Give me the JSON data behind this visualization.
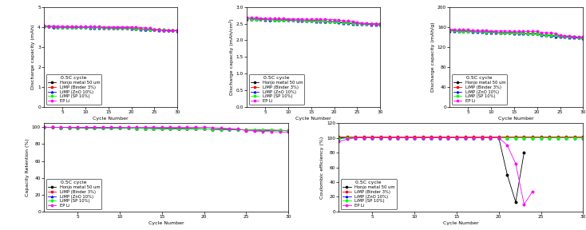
{
  "cycles": [
    1,
    2,
    3,
    4,
    5,
    6,
    7,
    8,
    9,
    10,
    11,
    12,
    13,
    14,
    15,
    16,
    17,
    18,
    19,
    20,
    21,
    22,
    23,
    24,
    25,
    26,
    27,
    28,
    29,
    30
  ],
  "series_labels": [
    "Honjo metal 50 um",
    "LiMP (Binder 3%)",
    "LiMP (ZnO 10%)",
    "LiMP (SP 10%)",
    "EP Li"
  ],
  "series_colors": [
    "black",
    "red",
    "blue",
    "lime",
    "magenta"
  ],
  "series_markers": [
    "o",
    "s",
    "^",
    "D",
    "o"
  ],
  "series_linestyles": [
    "-",
    "-",
    "-",
    "-",
    "-"
  ],
  "legend_title": "0.5C cycle",
  "plot1_ylabel": "Discharge capacity (mAh)",
  "plot2_ylabel": "Discharge capacity (mAh/cm²)",
  "plot3_ylabel": "Discharge capacity (mAh/g)",
  "plot4_ylabel": "Capacity Retention (%)",
  "plot5_ylabel": "Coulombic efficiency (%)",
  "xlabel": "Cycle Number",
  "plot1_ylim": [
    0,
    5
  ],
  "plot2_ylim": [
    0.0,
    3.0
  ],
  "plot3_ylim": [
    0,
    200
  ],
  "plot4_ylim": [
    0,
    105
  ],
  "plot5_ylim": [
    0,
    120
  ],
  "discharge_capacity_mAh": {
    "Honjo metal 50 um": [
      4.02,
      4.01,
      4.0,
      4.0,
      3.99,
      3.99,
      3.99,
      3.98,
      3.98,
      3.98,
      3.97,
      3.97,
      3.97,
      3.96,
      3.96,
      3.96,
      3.95,
      3.95,
      3.95,
      3.94,
      3.9,
      3.89,
      3.88,
      3.87,
      3.86,
      3.85,
      3.84,
      3.83,
      3.82,
      3.81
    ],
    "LiMP (Binder 3%)": [
      4.02,
      4.01,
      4.01,
      4.0,
      4.0,
      3.99,
      3.99,
      3.99,
      3.98,
      3.98,
      3.98,
      3.97,
      3.97,
      3.96,
      3.96,
      3.96,
      3.95,
      3.95,
      3.95,
      3.94,
      3.91,
      3.9,
      3.89,
      3.88,
      3.87,
      3.86,
      3.85,
      3.84,
      3.83,
      3.82
    ],
    "LiMP (ZnO 10%)": [
      4.01,
      4.01,
      4.0,
      4.0,
      3.99,
      3.99,
      3.98,
      3.98,
      3.97,
      3.97,
      3.96,
      3.96,
      3.96,
      3.95,
      3.95,
      3.94,
      3.94,
      3.93,
      3.93,
      3.92,
      3.89,
      3.88,
      3.87,
      3.86,
      3.85,
      3.84,
      3.83,
      3.82,
      3.81,
      3.8
    ],
    "LiMP (SP 10%)": [
      4.02,
      4.01,
      4.01,
      4.0,
      4.0,
      4.0,
      3.99,
      3.99,
      3.98,
      3.98,
      3.98,
      3.97,
      3.97,
      3.96,
      3.96,
      3.96,
      3.95,
      3.95,
      3.94,
      3.94,
      3.91,
      3.9,
      3.89,
      3.88,
      3.87,
      3.86,
      3.85,
      3.84,
      3.83,
      3.82
    ],
    "EP Li": [
      4.05,
      4.04,
      4.04,
      4.03,
      4.03,
      4.03,
      4.02,
      4.02,
      4.02,
      4.01,
      4.01,
      4.01,
      4.01,
      4.0,
      4.0,
      4.0,
      4.0,
      4.0,
      4.0,
      4.0,
      3.97,
      3.96,
      3.95,
      3.94,
      3.87,
      3.85,
      3.84,
      3.83,
      3.82,
      3.81
    ]
  },
  "discharge_capacity_mAh_cm2": {
    "Honjo metal 50 um": [
      2.65,
      2.64,
      2.64,
      2.63,
      2.63,
      2.62,
      2.62,
      2.61,
      2.61,
      2.61,
      2.6,
      2.6,
      2.6,
      2.59,
      2.59,
      2.58,
      2.58,
      2.57,
      2.57,
      2.57,
      2.55,
      2.54,
      2.53,
      2.52,
      2.51,
      2.5,
      2.5,
      2.49,
      2.48,
      2.48
    ],
    "LiMP (Binder 3%)": [
      2.65,
      2.64,
      2.64,
      2.63,
      2.63,
      2.62,
      2.62,
      2.62,
      2.61,
      2.61,
      2.6,
      2.6,
      2.6,
      2.59,
      2.59,
      2.59,
      2.58,
      2.58,
      2.57,
      2.57,
      2.55,
      2.54,
      2.53,
      2.52,
      2.51,
      2.5,
      2.5,
      2.49,
      2.48,
      2.48
    ],
    "LiMP (ZnO 10%)": [
      2.64,
      2.64,
      2.63,
      2.63,
      2.62,
      2.62,
      2.61,
      2.61,
      2.6,
      2.6,
      2.6,
      2.59,
      2.59,
      2.58,
      2.58,
      2.57,
      2.57,
      2.57,
      2.56,
      2.56,
      2.53,
      2.52,
      2.51,
      2.5,
      2.5,
      2.49,
      2.48,
      2.47,
      2.47,
      2.46
    ],
    "LiMP (SP 10%)": [
      2.65,
      2.64,
      2.64,
      2.63,
      2.63,
      2.63,
      2.62,
      2.62,
      2.61,
      2.61,
      2.61,
      2.6,
      2.6,
      2.59,
      2.59,
      2.59,
      2.58,
      2.58,
      2.57,
      2.57,
      2.55,
      2.54,
      2.53,
      2.52,
      2.51,
      2.5,
      2.5,
      2.49,
      2.48,
      2.47
    ],
    "EP Li": [
      2.68,
      2.67,
      2.67,
      2.66,
      2.66,
      2.66,
      2.65,
      2.65,
      2.65,
      2.64,
      2.64,
      2.64,
      2.63,
      2.63,
      2.63,
      2.63,
      2.63,
      2.63,
      2.62,
      2.62,
      2.6,
      2.59,
      2.58,
      2.57,
      2.53,
      2.52,
      2.51,
      2.5,
      2.5,
      2.49
    ]
  },
  "discharge_capacity_mAh_g": {
    "Honjo metal 50 um": [
      153,
      153,
      152,
      152,
      152,
      151,
      151,
      151,
      150,
      150,
      150,
      149,
      149,
      149,
      148,
      148,
      148,
      147,
      147,
      147,
      145,
      144,
      143,
      143,
      142,
      141,
      141,
      140,
      139,
      139
    ],
    "LiMP (Binder 3%)": [
      153,
      153,
      152,
      152,
      152,
      151,
      151,
      151,
      150,
      150,
      150,
      149,
      149,
      149,
      148,
      148,
      148,
      147,
      147,
      147,
      145,
      144,
      143,
      143,
      142,
      141,
      141,
      140,
      139,
      139
    ],
    "LiMP (ZnO 10%)": [
      152,
      152,
      151,
      151,
      151,
      150,
      150,
      150,
      149,
      149,
      149,
      148,
      148,
      148,
      147,
      147,
      147,
      146,
      146,
      146,
      143,
      143,
      142,
      141,
      140,
      140,
      139,
      138,
      138,
      137
    ],
    "LiMP (SP 10%)": [
      153,
      153,
      152,
      152,
      152,
      151,
      151,
      151,
      150,
      150,
      150,
      149,
      149,
      149,
      148,
      148,
      148,
      147,
      147,
      147,
      145,
      144,
      144,
      143,
      142,
      141,
      141,
      140,
      139,
      139
    ],
    "EP Li": [
      155,
      155,
      154,
      154,
      154,
      153,
      153,
      153,
      153,
      152,
      152,
      152,
      152,
      151,
      151,
      151,
      151,
      151,
      151,
      151,
      149,
      148,
      148,
      147,
      143,
      142,
      142,
      141,
      140,
      140
    ]
  },
  "capacity_retention": {
    "Honjo metal 50 um": [
      100,
      99.9,
      99.8,
      99.7,
      99.6,
      99.5,
      99.4,
      99.3,
      99.2,
      99.1,
      99.0,
      98.9,
      98.8,
      98.7,
      98.6,
      98.5,
      98.4,
      98.3,
      98.2,
      98.1,
      97.8,
      97.6,
      97.4,
      97.2,
      97.0,
      96.8,
      96.6,
      96.4,
      96.2,
      96.0
    ],
    "LiMP (Binder 3%)": [
      100,
      99.9,
      99.8,
      99.7,
      99.6,
      99.5,
      99.4,
      99.3,
      99.2,
      99.1,
      99.0,
      98.9,
      98.8,
      98.7,
      98.6,
      98.5,
      98.4,
      98.3,
      98.2,
      98.1,
      97.8,
      97.7,
      97.5,
      97.3,
      97.1,
      96.9,
      96.7,
      96.5,
      96.3,
      96.1
    ],
    "LiMP (ZnO 10%)": [
      100,
      99.9,
      99.8,
      99.7,
      99.6,
      99.5,
      99.4,
      99.3,
      99.2,
      99.1,
      99.0,
      98.9,
      98.8,
      98.7,
      98.6,
      98.5,
      98.4,
      98.3,
      98.2,
      98.1,
      97.7,
      97.5,
      97.3,
      97.1,
      96.9,
      96.7,
      96.5,
      96.3,
      96.1,
      95.9
    ],
    "LiMP (SP 10%)": [
      100,
      99.9,
      99.8,
      99.7,
      99.6,
      99.5,
      99.4,
      99.3,
      99.2,
      99.1,
      99.0,
      98.9,
      98.8,
      98.7,
      98.6,
      98.5,
      98.4,
      98.3,
      98.2,
      98.1,
      97.8,
      97.6,
      97.4,
      97.2,
      97.0,
      96.8,
      96.6,
      96.4,
      96.2,
      96.0
    ],
    "EP Li": [
      100,
      100,
      100,
      100,
      100,
      100,
      100,
      100,
      100,
      100,
      100,
      100,
      100,
      100,
      100,
      100,
      100,
      100,
      100,
      100,
      99.5,
      99.0,
      98.5,
      98.0,
      96.0,
      95.5,
      95.0,
      94.8,
      94.5,
      94.3
    ]
  },
  "coulombic_efficiency": {
    "Honjo metal 50 um": [
      100,
      100,
      100,
      100,
      100,
      100,
      100,
      100,
      100,
      100,
      100,
      100,
      100,
      100,
      100,
      100,
      100,
      100,
      100,
      100,
      50,
      13,
      80,
      null,
      null,
      null,
      null,
      null,
      null,
      null
    ],
    "LiMP (Binder 3%)": [
      102,
      102,
      102,
      102,
      102,
      102,
      102,
      102,
      102,
      102,
      102,
      102,
      102,
      102,
      102,
      102,
      102,
      102,
      102,
      102,
      102,
      102,
      102,
      102,
      102,
      102,
      102,
      102,
      102,
      102
    ],
    "LiMP (ZnO 10%)": [
      99,
      100,
      100,
      100,
      100,
      100,
      100,
      100,
      100,
      100,
      100,
      100,
      100,
      100,
      100,
      100,
      100,
      100,
      100,
      100,
      100,
      100,
      100,
      100,
      100,
      100,
      100,
      100,
      100,
      100
    ],
    "LiMP (SP 10%)": [
      99,
      100,
      100,
      100,
      100,
      100,
      100,
      100,
      100,
      100,
      100,
      100,
      100,
      100,
      100,
      100,
      100,
      100,
      100,
      100,
      100,
      100,
      100,
      100,
      100,
      100,
      100,
      100,
      100,
      100
    ],
    "EP Li": [
      95,
      98,
      100,
      100,
      100,
      100,
      100,
      100,
      100,
      100,
      100,
      100,
      100,
      100,
      100,
      100,
      100,
      100,
      100,
      100,
      90,
      65,
      10,
      27,
      null,
      null,
      null,
      null,
      null,
      null
    ]
  }
}
